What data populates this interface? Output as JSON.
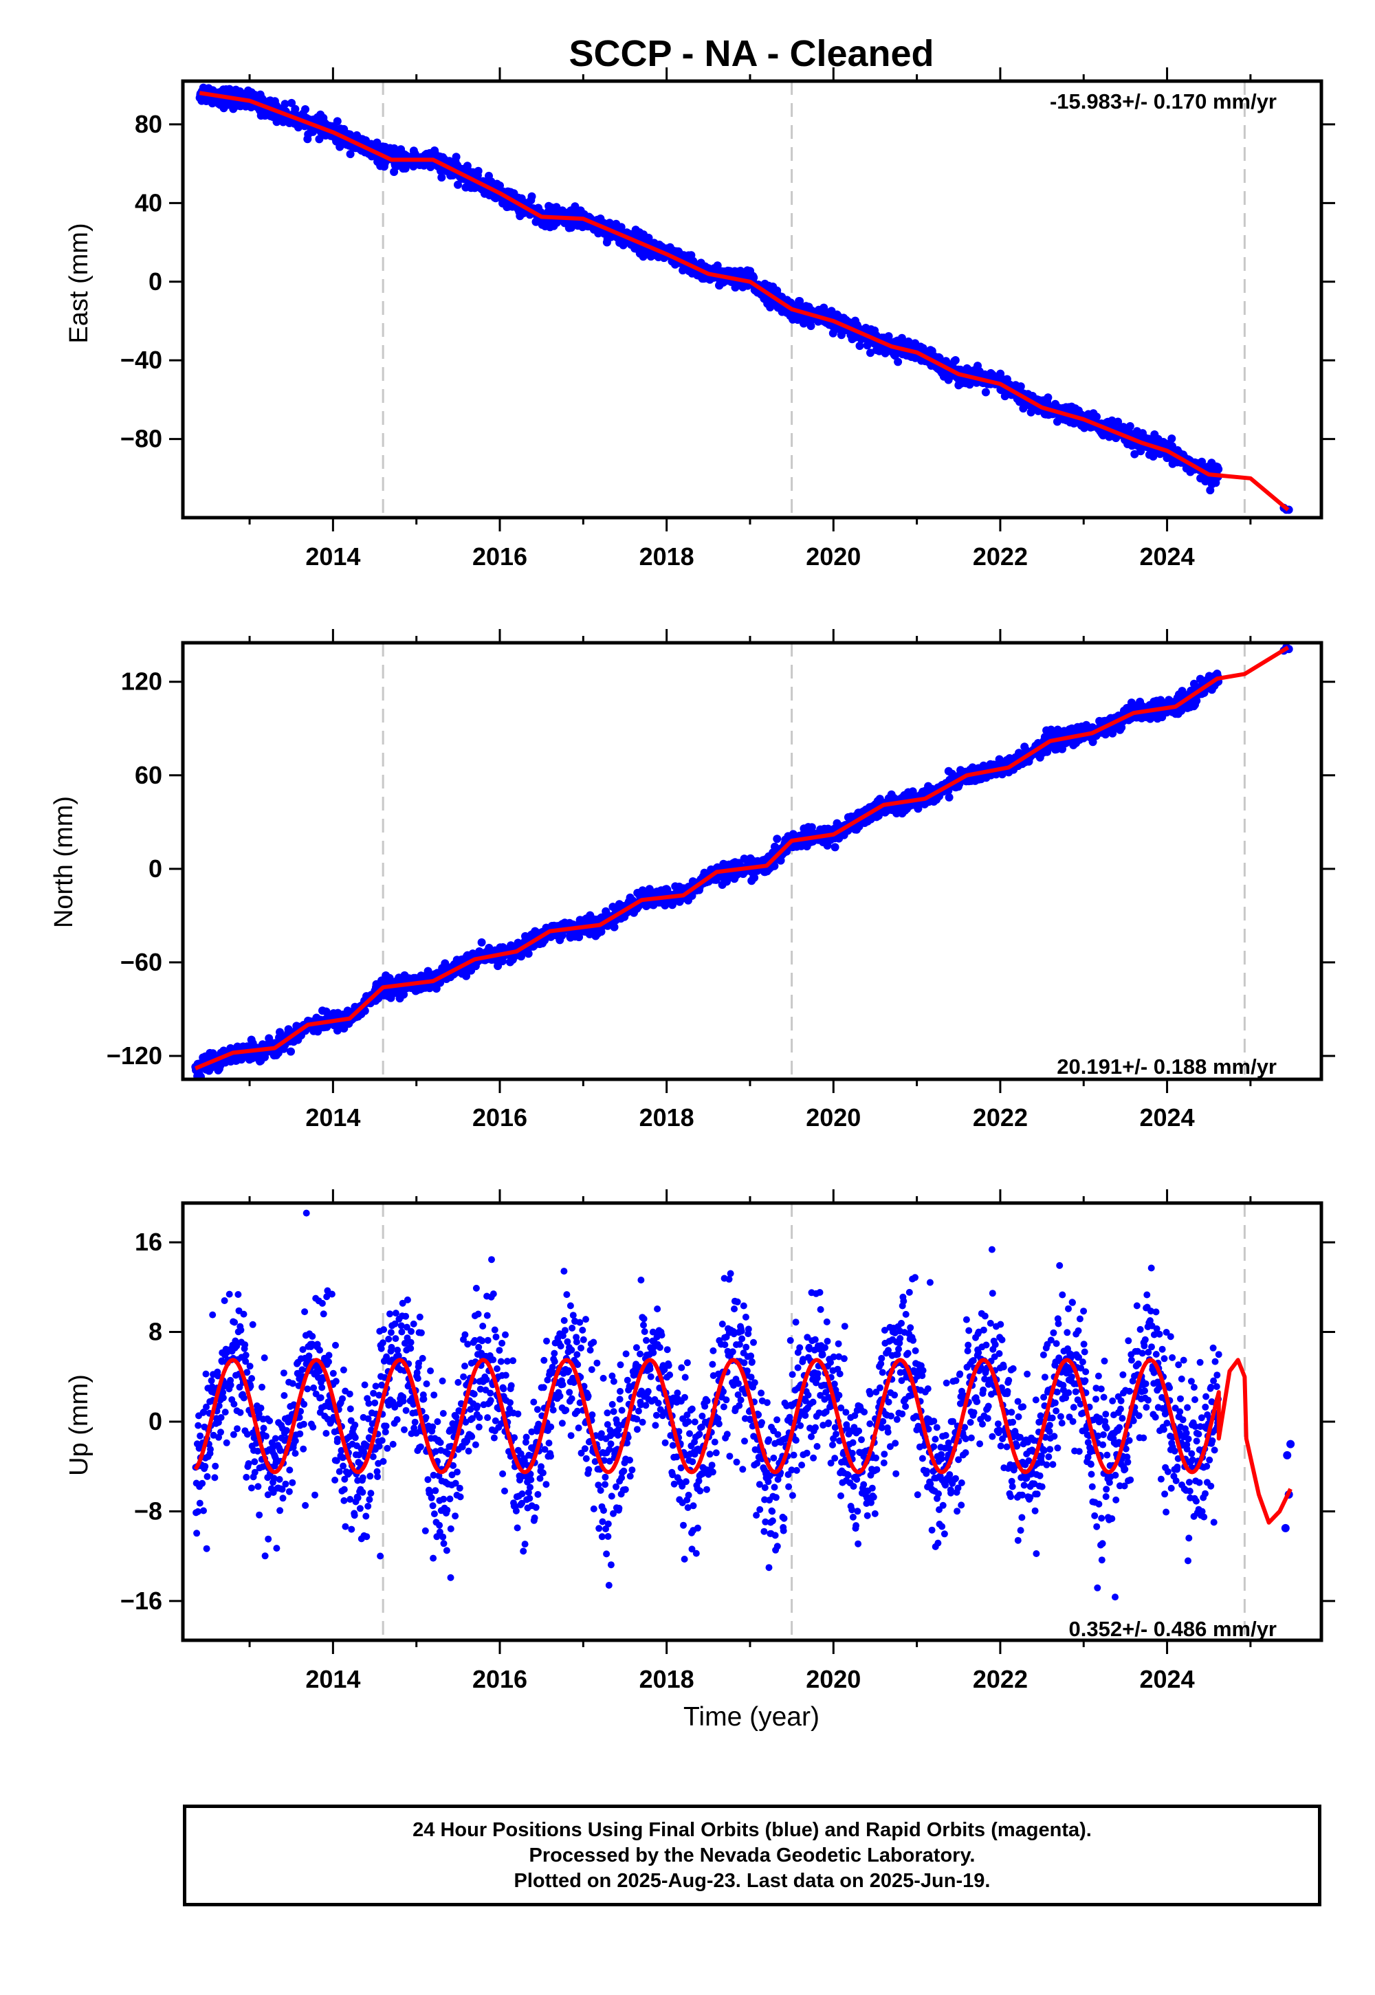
{
  "title": "SCCP  - NA - Cleaned",
  "xlabel": "Time (year)",
  "caption": {
    "line1": "24 Hour Positions Using Final Orbits (blue) and Rapid Orbits (magenta).",
    "line2": "Processed by the Nevada Geodetic Laboratory.",
    "line3": "Plotted on 2025-Aug-23. Last data on 2025-Jun-19."
  },
  "colors": {
    "data_points": "#0000ff",
    "model_fit": "#ff0000",
    "dashed_lines": "#c8c8c8",
    "axes": "#000000"
  },
  "chart_data": [
    {
      "type": "scatter",
      "panel": "east",
      "ylabel": "East (mm)",
      "rate_label": "-15.983+/- 0.170 mm/yr",
      "rate_position": "top-right",
      "xlim": [
        2012.2,
        2025.85
      ],
      "ylim": [
        -120,
        102
      ],
      "x_ticks": [
        2014,
        2016,
        2018,
        2020,
        2022,
        2024
      ],
      "y_ticks": [
        80,
        40,
        0,
        -40,
        -80
      ],
      "y_tick_labels": [
        "80",
        "40",
        "0",
        "−40",
        "−80"
      ],
      "event_lines_x": [
        2014.6,
        2019.5,
        2024.93
      ],
      "trend": {
        "slope_mm_per_yr": -15.983,
        "value_at_2012_5": 96
      },
      "anchor_points": [
        [
          2012.4,
          96
        ],
        [
          2013,
          92
        ],
        [
          2014,
          76
        ],
        [
          2014.7,
          62
        ],
        [
          2015.2,
          62
        ],
        [
          2016,
          45
        ],
        [
          2016.5,
          33
        ],
        [
          2017,
          32
        ],
        [
          2018,
          14
        ],
        [
          2018.5,
          4
        ],
        [
          2019,
          0
        ],
        [
          2019.5,
          -14
        ],
        [
          2020,
          -20
        ],
        [
          2020.7,
          -33
        ],
        [
          2021,
          -36
        ],
        [
          2021.5,
          -47
        ],
        [
          2022,
          -52
        ],
        [
          2022.5,
          -64
        ],
        [
          2023,
          -70
        ],
        [
          2023.7,
          -82
        ],
        [
          2024,
          -86
        ],
        [
          2024.5,
          -98
        ],
        [
          2025,
          -100
        ],
        [
          2025.45,
          -116
        ]
      ],
      "noise_mm": 2.4,
      "last_points": [
        [
          2025.4,
          -115
        ],
        [
          2025.43,
          -116
        ],
        [
          2025.46,
          -116
        ]
      ]
    },
    {
      "type": "scatter",
      "panel": "north",
      "ylabel": "North (mm)",
      "rate_label": "20.191+/- 0.188 mm/yr",
      "rate_position": "bottom-right",
      "xlim": [
        2012.2,
        2025.85
      ],
      "ylim": [
        -135,
        145
      ],
      "x_ticks": [
        2014,
        2016,
        2018,
        2020,
        2022,
        2024
      ],
      "y_ticks": [
        120,
        60,
        0,
        -60,
        -120
      ],
      "y_tick_labels": [
        "120",
        "60",
        "0",
        "−60",
        "−120"
      ],
      "event_lines_x": [
        2014.6,
        2019.5,
        2024.93
      ],
      "trend": {
        "slope_mm_per_yr": 20.191,
        "value_at_2012_5": -122
      },
      "anchor_points": [
        [
          2012.35,
          -128
        ],
        [
          2012.8,
          -118
        ],
        [
          2013.3,
          -115
        ],
        [
          2013.7,
          -100
        ],
        [
          2014.2,
          -96
        ],
        [
          2014.6,
          -76
        ],
        [
          2015.2,
          -72
        ],
        [
          2015.7,
          -58
        ],
        [
          2016.2,
          -53
        ],
        [
          2016.6,
          -40
        ],
        [
          2017.2,
          -36
        ],
        [
          2017.7,
          -20
        ],
        [
          2018.2,
          -17
        ],
        [
          2018.6,
          -2
        ],
        [
          2019.2,
          2
        ],
        [
          2019.5,
          18
        ],
        [
          2020,
          22
        ],
        [
          2020.6,
          41
        ],
        [
          2021.1,
          45
        ],
        [
          2021.6,
          60
        ],
        [
          2022.1,
          65
        ],
        [
          2022.6,
          82
        ],
        [
          2023.1,
          87
        ],
        [
          2023.6,
          100
        ],
        [
          2024.1,
          104
        ],
        [
          2024.6,
          122
        ],
        [
          2024.93,
          125
        ],
        [
          2025.45,
          142
        ]
      ],
      "noise_mm": 2.8,
      "last_points": [
        [
          2025.4,
          140
        ],
        [
          2025.43,
          142
        ],
        [
          2025.46,
          141
        ]
      ]
    },
    {
      "type": "scatter",
      "panel": "up",
      "ylabel": "Up (mm)",
      "rate_label": "0.352+/- 0.486 mm/yr",
      "rate_position": "bottom-right",
      "xlim": [
        2012.2,
        2025.85
      ],
      "ylim": [
        -19.5,
        19.5
      ],
      "x_ticks": [
        2014,
        2016,
        2018,
        2020,
        2022,
        2024
      ],
      "y_ticks": [
        16,
        8,
        0,
        -8,
        -16
      ],
      "y_tick_labels": [
        "16",
        "8",
        "0",
        "−8",
        "−16"
      ],
      "event_lines_x": [
        2014.6,
        2019.5,
        2024.93
      ],
      "seasonal": {
        "amplitude_mm": 5,
        "peak_phase_year_fraction": 0.8,
        "offset_mm": 0.5
      },
      "data_range_x": [
        2012.35,
        2024.62
      ],
      "noise_mm": 3.2,
      "model_tail": [
        [
          2024.62,
          -1.5
        ],
        [
          2024.75,
          4.5
        ],
        [
          2024.85,
          5.5
        ],
        [
          2024.93,
          4.0
        ],
        [
          2024.95,
          -1.5
        ],
        [
          2025.1,
          -6.5
        ],
        [
          2025.22,
          -9.0
        ],
        [
          2025.35,
          -8.0
        ],
        [
          2025.48,
          -6.0
        ]
      ],
      "last_points": [
        [
          2025.44,
          -3.0
        ],
        [
          2025.46,
          -6.5
        ],
        [
          2025.48,
          -2.0
        ],
        [
          2025.42,
          -9.5
        ]
      ]
    }
  ]
}
